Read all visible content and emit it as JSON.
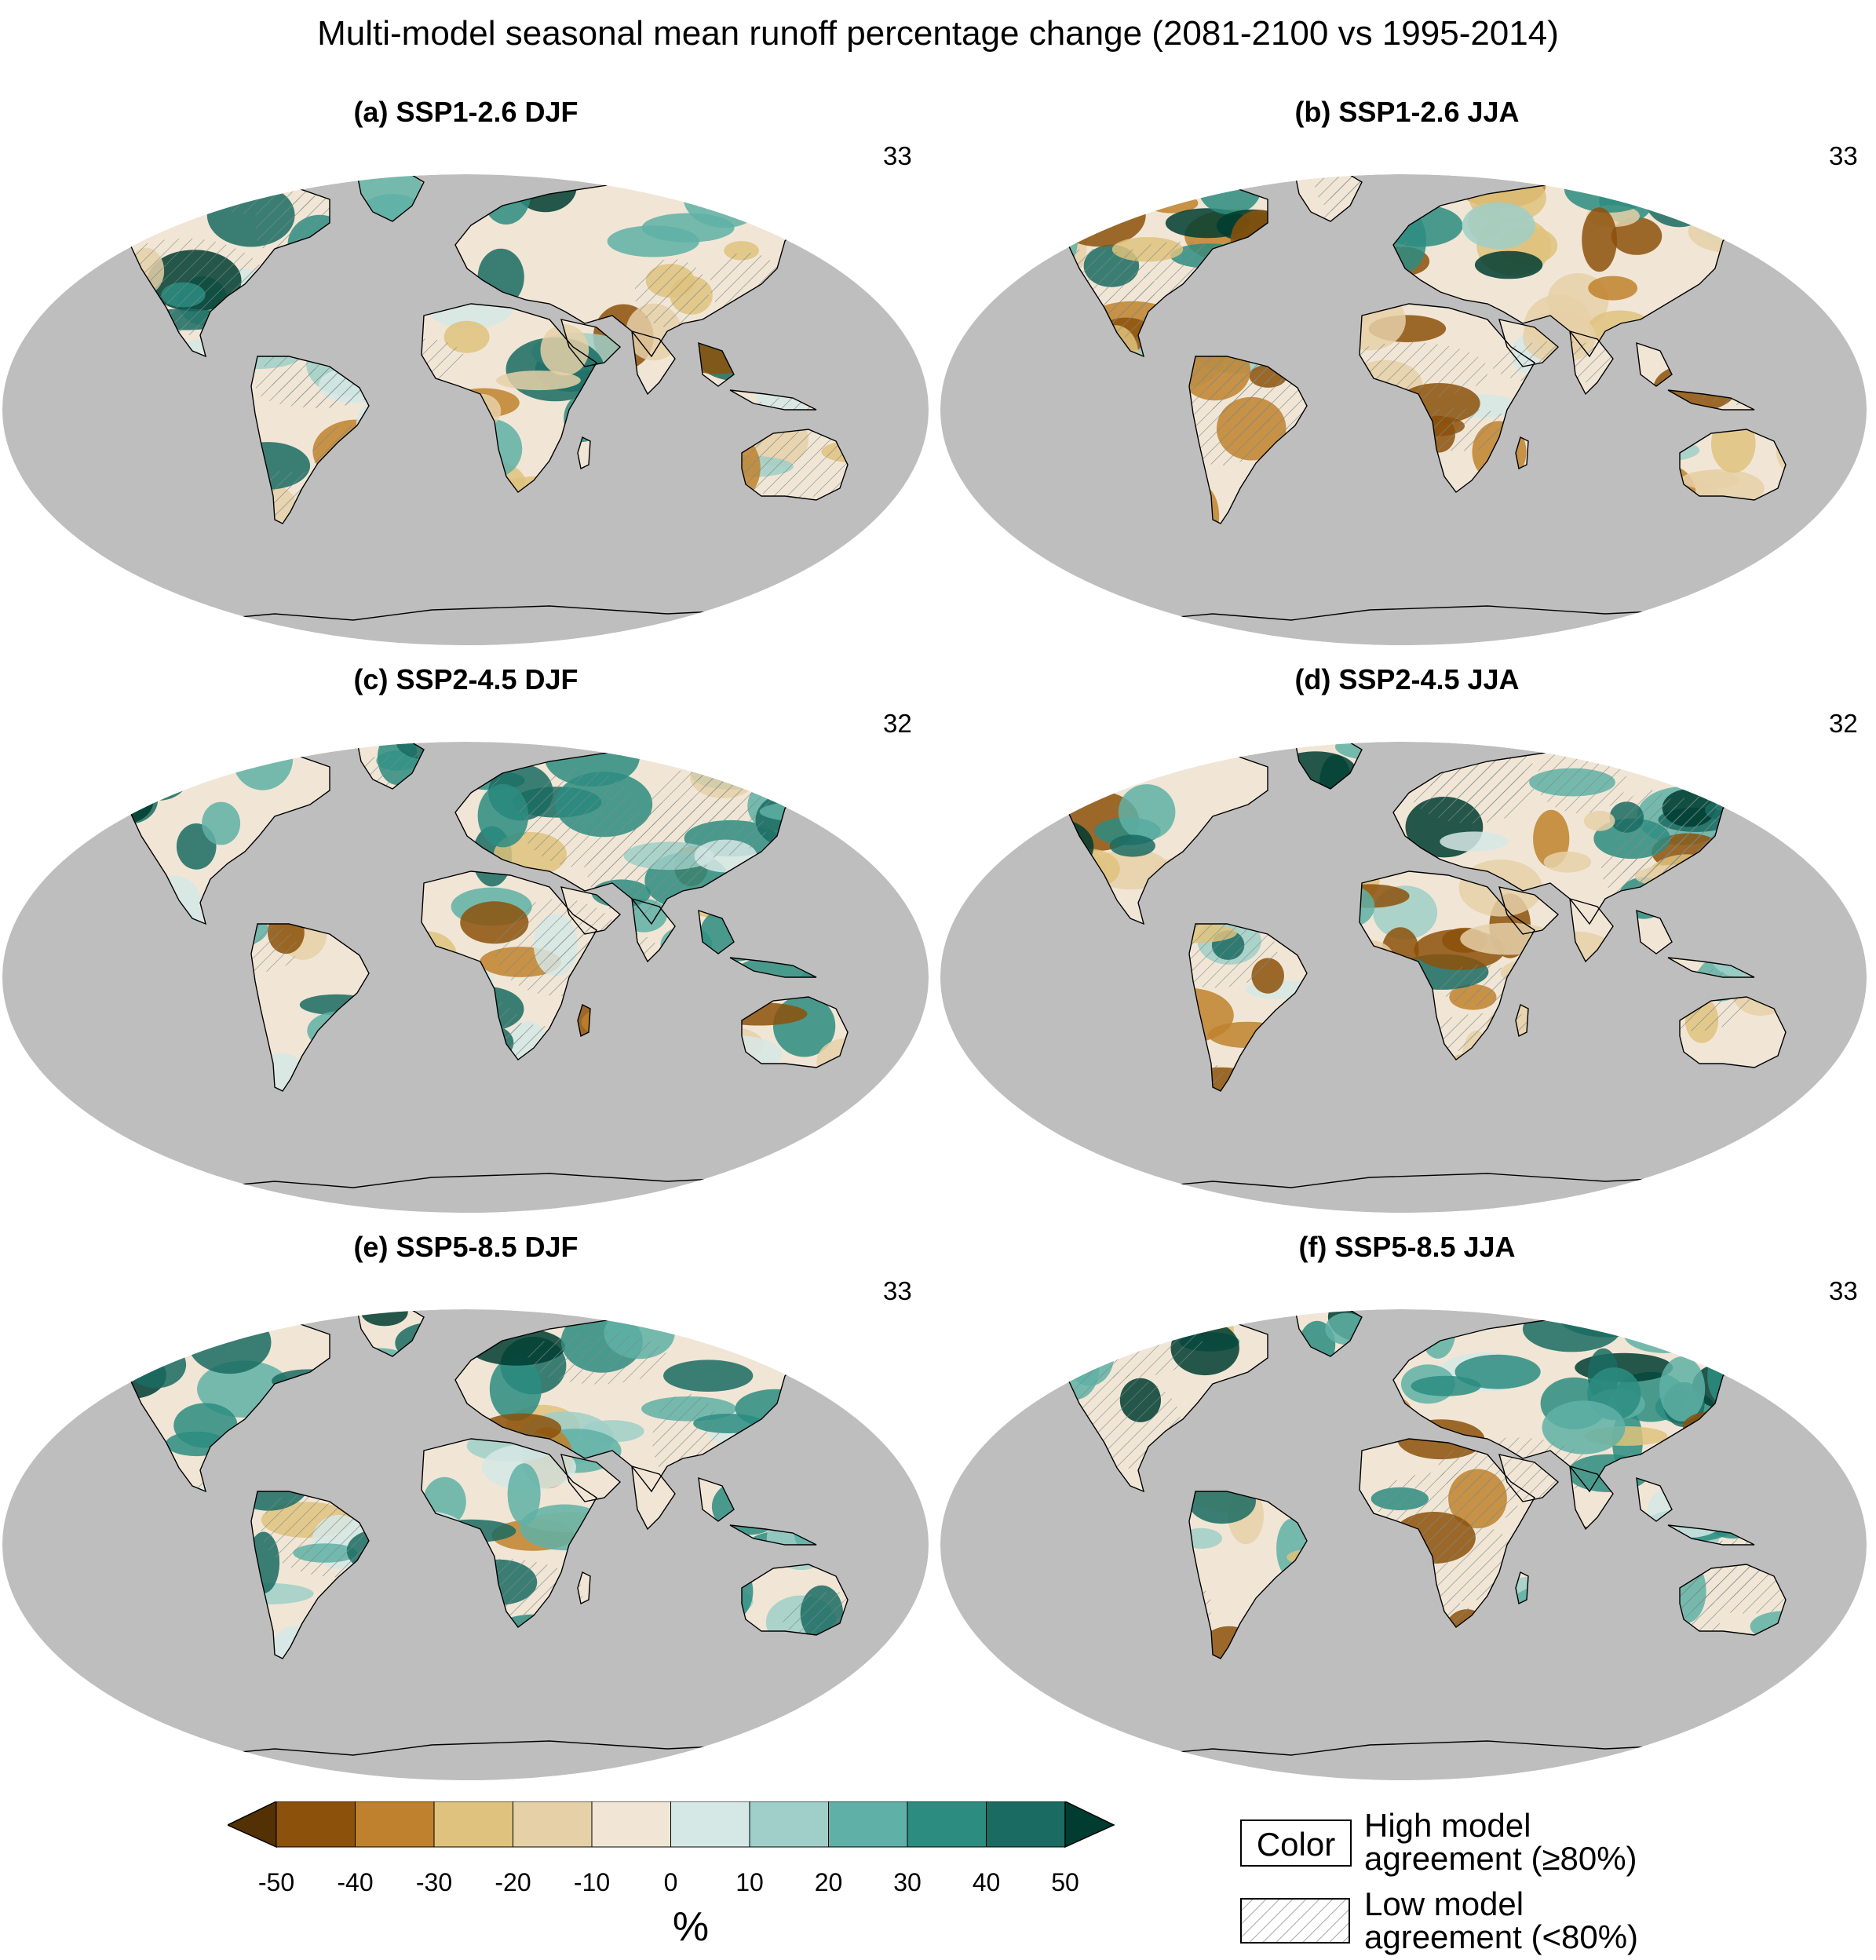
{
  "title": "Multi-model seasonal mean runoff percentage change (2081-2100 vs 1995-2014)",
  "panels": [
    {
      "label": "(a) SSP1-2.6 DJF",
      "count": "33",
      "wet_level": 0.55
    },
    {
      "label": "(b) SSP1-2.6 JJA",
      "count": "33",
      "wet_level": 0.25
    },
    {
      "label": "(c) SSP2-4.5 DJF",
      "count": "32",
      "wet_level": 0.7
    },
    {
      "label": "(d) SSP2-4.5 JJA",
      "count": "32",
      "wet_level": 0.4
    },
    {
      "label": "(e) SSP5-8.5 DJF",
      "count": "33",
      "wet_level": 0.85
    },
    {
      "label": "(f) SSP5-8.5 JJA",
      "count": "33",
      "wet_level": 0.6
    }
  ],
  "colorbar": {
    "unit": "%",
    "ticks": [
      "-50",
      "-40",
      "-30",
      "-20",
      "-10",
      "0",
      "10",
      "20",
      "30",
      "40",
      "50"
    ],
    "colors": [
      "#543005",
      "#8c510a",
      "#bf812d",
      "#dfc27d",
      "#e6d0a8",
      "#f1e6d6",
      "#d6e8e6",
      "#9fcfc8",
      "#5fb0a6",
      "#2c8c80",
      "#1a6b61",
      "#003c30"
    ]
  },
  "legend": {
    "color_box": "Color",
    "high_line1": "High model",
    "high_line2": "agreement (≥80%)",
    "low_line1": "Low model",
    "low_line2": "agreement (<80%)"
  },
  "colors": {
    "ocean": "#bebebe",
    "land_light": "#f1e6d6",
    "coast": "#000000"
  }
}
